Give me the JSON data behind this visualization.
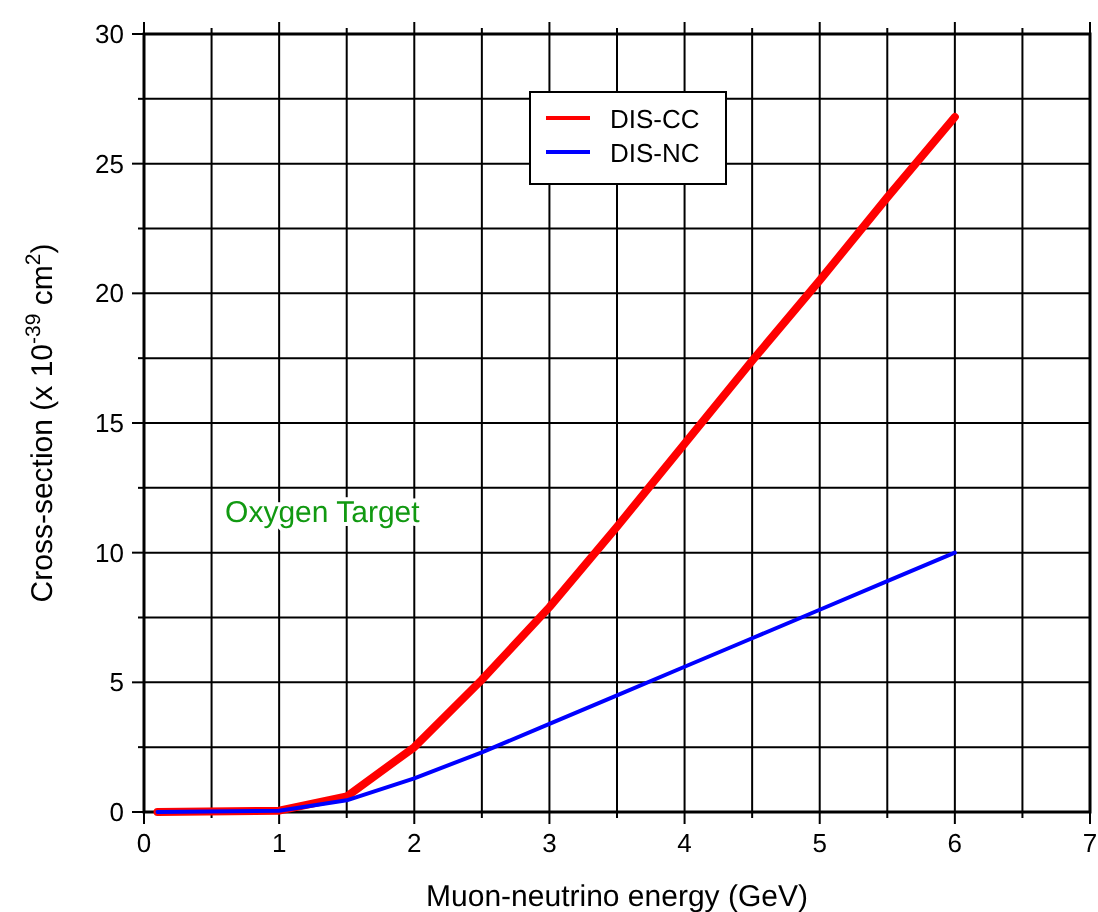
{
  "chart_data": {
    "type": "line",
    "xlabel": "Muon-neutrino energy (GeV)",
    "ylabel": "Cross-section (x 10$^{-39}$ cm$^{2}$)",
    "xlim": [
      0,
      7
    ],
    "ylim": [
      0,
      30
    ],
    "xticks": [
      0,
      {
        "value": 0.5,
        "label": null
      },
      1,
      {
        "value": 1.5,
        "label": null
      },
      2,
      {
        "value": 2.5,
        "label": null
      },
      3,
      {
        "value": 3.5,
        "label": null
      },
      4,
      {
        "value": 4.5,
        "label": null
      },
      5,
      {
        "value": 5.5,
        "label": null
      },
      6,
      {
        "value": 6.5,
        "label": null
      },
      7
    ],
    "yticks": [
      0,
      {
        "value": 2.5,
        "label": null
      },
      5,
      {
        "value": 7.5,
        "label": null
      },
      10,
      {
        "value": 12.5,
        "label": null
      },
      15,
      {
        "value": 17.5,
        "label": null
      },
      20,
      {
        "value": 22.5,
        "label": null
      },
      25,
      {
        "value": 27.5,
        "label": null
      },
      30
    ],
    "grid": true,
    "legend": "top",
    "line_style": "solid",
    "marker": "none",
    "annotations": [
      "Oxygen Target"
    ],
    "series": [
      {
        "name": "DIS-CC",
        "color": "#ff0000",
        "x": [
          0.1,
          1,
          1.5,
          2,
          2.5,
          3,
          3.5,
          4,
          4.5,
          5,
          5.5,
          6
        ],
        "values": [
          0,
          0.05,
          0.6,
          2.5,
          5.1,
          7.9,
          11,
          14.2,
          17.4,
          20.5,
          23.7,
          26.8
        ]
      },
      {
        "name": "DIS-NC",
        "color": "#0000ff",
        "x": [
          0.1,
          1,
          1.5,
          2,
          2.5,
          3,
          3.5,
          4,
          4.5,
          5,
          5.5,
          6
        ],
        "values": [
          0,
          0.05,
          0.45,
          1.3,
          2.3,
          3.4,
          4.5,
          5.6,
          6.7,
          7.8,
          8.9,
          10
        ]
      }
    ]
  }
}
